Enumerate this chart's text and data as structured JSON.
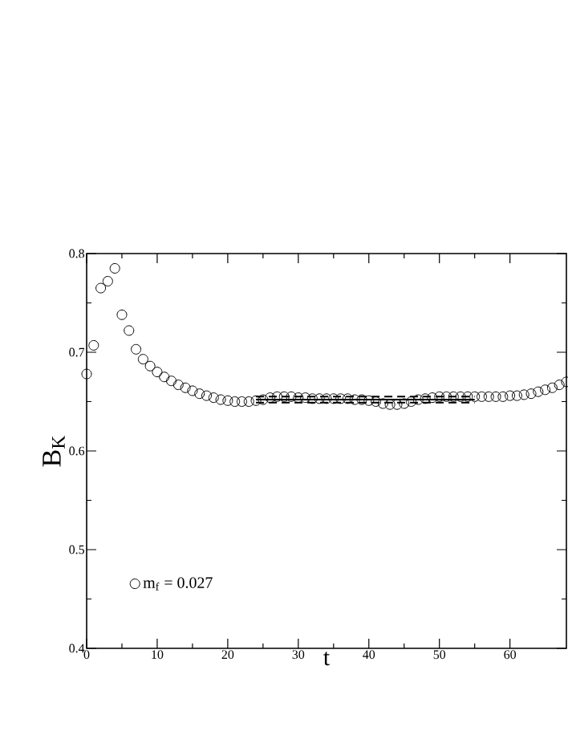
{
  "chart_data": {
    "type": "scatter",
    "xlabel": "t",
    "ylabel": "B$_{K}$",
    "xlim": [
      0,
      68
    ],
    "ylim": [
      0.4,
      0.8
    ],
    "xticks": [
      0,
      10,
      20,
      30,
      40,
      50,
      60
    ],
    "yticks": [
      0.4,
      0.5,
      0.6,
      0.7,
      0.8
    ],
    "legend": "bottom left",
    "grid": false,
    "series": [
      {
        "name": "m$_{f}$ = 0.027",
        "color": "#000000",
        "marker": "circle",
        "x": [
          0,
          1,
          2,
          3,
          4,
          5,
          6,
          7,
          8,
          9,
          10,
          11,
          12,
          13,
          14,
          15,
          16,
          17,
          18,
          19,
          20,
          21,
          22,
          23,
          24,
          25,
          26,
          27,
          28,
          29,
          30,
          31,
          32,
          33,
          34,
          35,
          36,
          37,
          38,
          39,
          40,
          41,
          42,
          43,
          44,
          45,
          46,
          47,
          48,
          49,
          50,
          51,
          52,
          53,
          54,
          55,
          56,
          57,
          58,
          59,
          60,
          61,
          62,
          63,
          64,
          65,
          66,
          67,
          68
        ],
        "values": [
          0.678,
          0.707,
          0.765,
          0.772,
          0.785,
          0.738,
          0.722,
          0.703,
          0.693,
          0.686,
          0.68,
          0.675,
          0.671,
          0.667,
          0.664,
          0.661,
          0.658,
          0.656,
          0.654,
          0.652,
          0.651,
          0.65,
          0.65,
          0.65,
          0.651,
          0.652,
          0.654,
          0.655,
          0.655,
          0.655,
          0.654,
          0.654,
          0.653,
          0.653,
          0.653,
          0.653,
          0.653,
          0.653,
          0.652,
          0.652,
          0.651,
          0.65,
          0.648,
          0.647,
          0.647,
          0.648,
          0.65,
          0.652,
          0.653,
          0.654,
          0.655,
          0.655,
          0.655,
          0.655,
          0.655,
          0.655,
          0.655,
          0.655,
          0.655,
          0.655,
          0.656,
          0.656,
          0.657,
          0.658,
          0.66,
          0.662,
          0.664,
          0.667,
          0.67
        ]
      },
      {
        "type": "line",
        "line_style": "solid",
        "marker": "none",
        "color": "#000000",
        "x": [
          24,
          55
        ],
        "values": [
          0.652,
          0.652
        ]
      },
      {
        "type": "line",
        "line_style": "dashed",
        "marker": "none",
        "color": "#000000",
        "x": [
          24,
          55
        ],
        "values": [
          0.655,
          0.655
        ]
      },
      {
        "type": "line",
        "line_style": "dashed",
        "marker": "none",
        "color": "#000000",
        "x": [
          24,
          55
        ],
        "values": [
          0.649,
          0.649
        ]
      }
    ]
  }
}
